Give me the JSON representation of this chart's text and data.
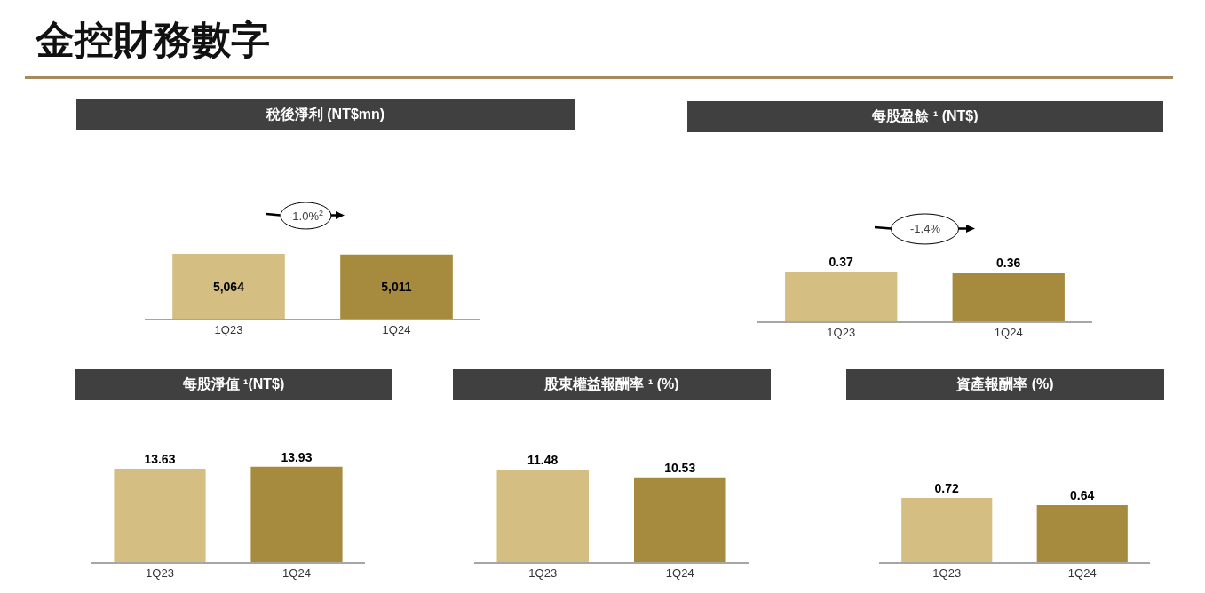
{
  "chart_data": [
    {
      "type": "other",
      "title": "金控財務數字"
    },
    {
      "type": "bar",
      "title": "稅後淨利 (NT$mn)",
      "categories": [
        "1Q23",
        "1Q24"
      ],
      "values": [
        5064,
        5011
      ],
      "value_labels": [
        "5,064",
        "5,011"
      ],
      "colors": [
        "#d4be82",
        "#a68a3e"
      ],
      "annotations": [
        "-1.0%$^{2}$"
      ]
    },
    {
      "type": "bar",
      "title": "每股盈餘 ¹ (NT$)",
      "categories": [
        "1Q23",
        "1Q24"
      ],
      "values": [
        0.37,
        0.36
      ],
      "colors": [
        "#d4be82",
        "#a68a3e"
      ],
      "data_labels": true,
      "annotations": [
        "-1.4%"
      ]
    },
    {
      "type": "bar",
      "title": "每股淨值 ¹(NT$)",
      "categories": [
        "1Q23",
        "1Q24"
      ],
      "values": [
        13.63,
        13.93
      ],
      "colors": [
        "#d4be82",
        "#a68a3e"
      ],
      "data_labels": true
    },
    {
      "type": "bar",
      "title": "股東權益報酬率 ¹ (%)",
      "categories": [
        "1Q23",
        "1Q24"
      ],
      "values": [
        11.48,
        10.53
      ],
      "colors": [
        "#d4be82",
        "#a68a3e"
      ],
      "data_labels": true
    },
    {
      "type": "bar",
      "title": "資產報酬率 (%)",
      "categories": [
        "1Q23",
        "1Q24"
      ],
      "values": [
        0.72,
        0.64
      ],
      "colors": [
        "#d4be82",
        "#a68a3e"
      ],
      "data_labels": true
    }
  ]
}
